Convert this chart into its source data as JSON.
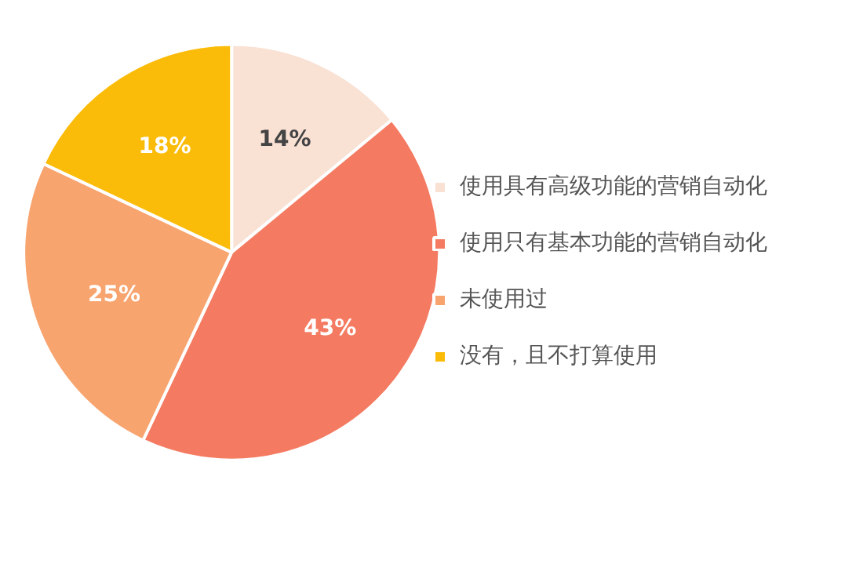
{
  "chart_data": {
    "type": "pie",
    "categories": [
      "使用具有高级功能的营销自动化",
      "使用只有基本功能的营销自动化",
      "未使用过",
      "没有，且不打算使用"
    ],
    "values": [
      14,
      43,
      25,
      18
    ],
    "colors": [
      "#f9e1d4",
      "#f47b62",
      "#f8a46f",
      "#fbbc09"
    ],
    "value_labels": [
      "14%",
      "43%",
      "25%",
      "18%"
    ],
    "legend": "right"
  }
}
